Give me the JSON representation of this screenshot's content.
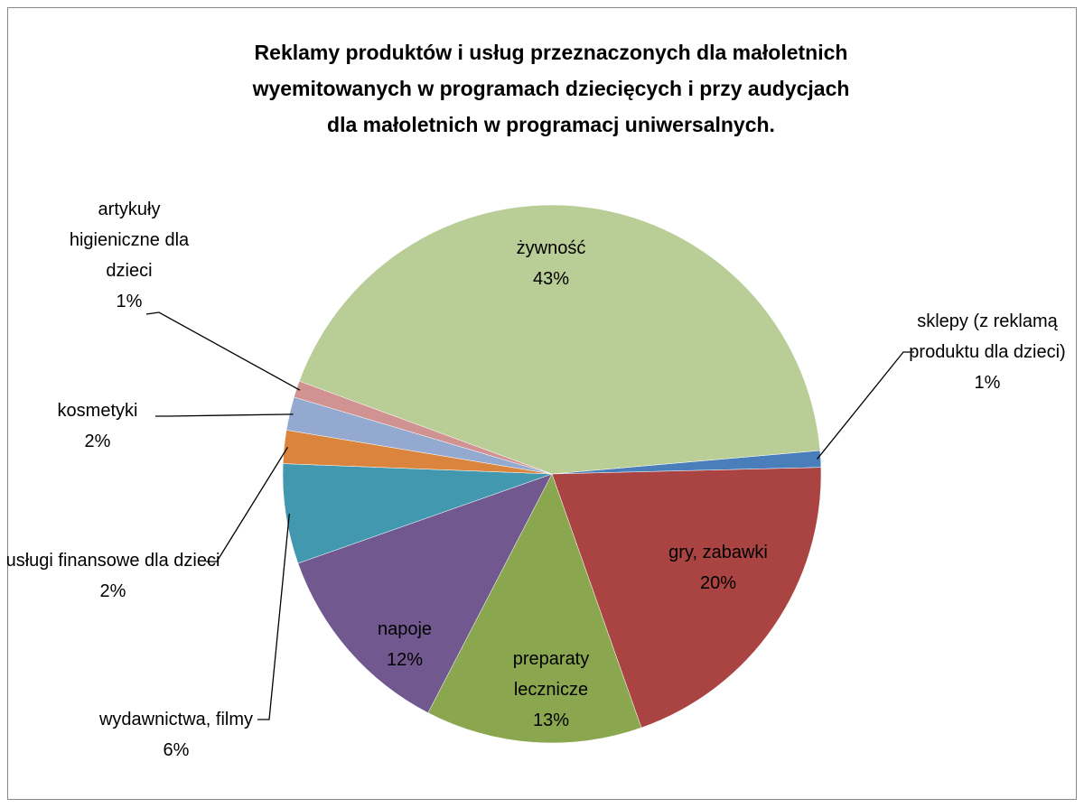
{
  "chart_data": {
    "type": "pie",
    "title": "Reklamy produktów i usług przeznaczonych dla  małoletnich wyemitowanych w programach dziecięcych  i przy audycjach dla małoletnich w programacj uniwersalnych.",
    "categories": [
      "sklepy (z reklamą produktu dla dzieci)",
      "gry, zabawki",
      "preparaty lecznicze",
      "napoje",
      "wydawnictwa, filmy",
      "usługi finansowe dla dzieci",
      "kosmetyki",
      "artykuły higieniczne dla dzieci",
      "żywność"
    ],
    "values": [
      1,
      20,
      13,
      12,
      6,
      2,
      2,
      1,
      43
    ],
    "value_labels": [
      "1%",
      "20%",
      "13%",
      "12%",
      "6%",
      "2%",
      "2%",
      "1%",
      "43%"
    ],
    "colors": [
      "#4a7ebb",
      "#a94442",
      "#8aa64e",
      "#71588f",
      "#4198af",
      "#db843d",
      "#93a9cf",
      "#d19392",
      "#b9cd96"
    ]
  }
}
